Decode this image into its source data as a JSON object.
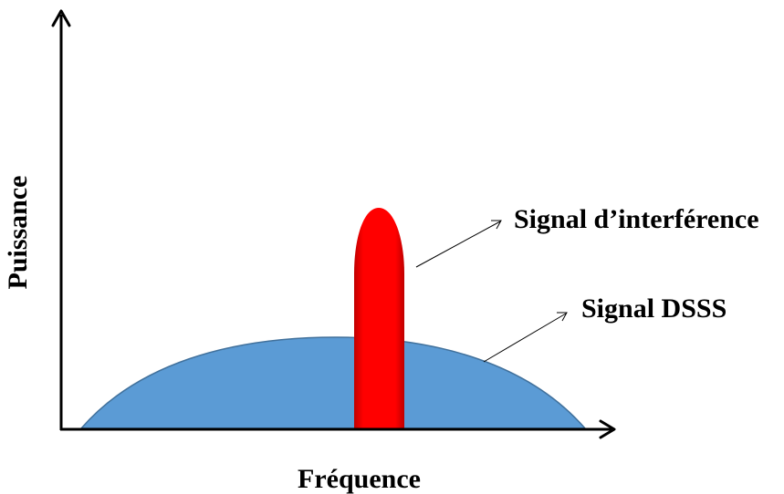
{
  "diagram": {
    "x_axis_label": "Fréquence",
    "y_axis_label": "Puissance",
    "interference_label": "Signal d’interférence",
    "dsss_label": "Signal DSSS"
  },
  "colors": {
    "dsss_fill": "#5b9bd5",
    "dsss_outline": "#41719c",
    "interference_fill": "#ff0000",
    "axis": "#000000"
  }
}
